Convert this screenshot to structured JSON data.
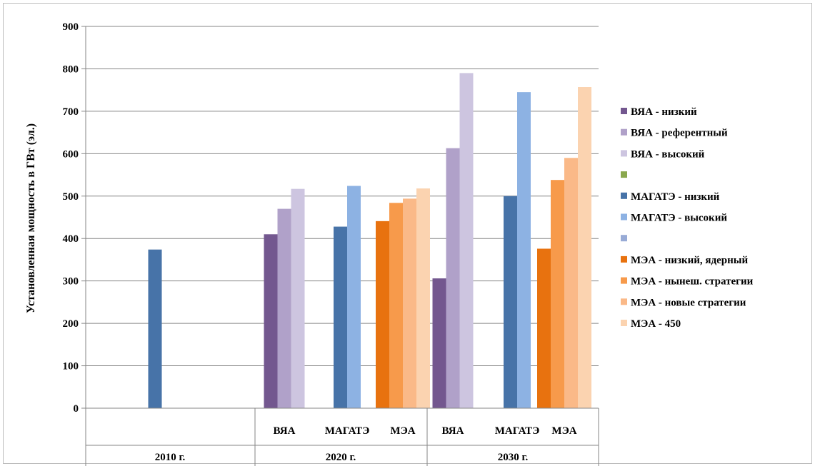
{
  "chart_data": {
    "type": "bar",
    "ylabel": "Установленная мощность в ГВт (эл.)",
    "ylim": [
      0,
      900
    ],
    "yticks": [
      "0",
      "100",
      "200",
      "300",
      "400",
      "500",
      "600",
      "700",
      "800",
      "900"
    ],
    "grid": true,
    "legend_position": "right",
    "years": [
      "2010 г.",
      "2020 г.",
      "2030 г."
    ],
    "groups": [
      {
        "year": "2010 г.",
        "label": "",
        "bars": [
          {
            "series": "МАГАТЭ - низкий",
            "value": 374
          }
        ]
      },
      {
        "year": "2020 г.",
        "label": "ВЯА",
        "bars": [
          {
            "series": "ВЯА - низкий",
            "value": 410
          },
          {
            "series": "ВЯА - референтный",
            "value": 470
          },
          {
            "series": "ВЯА - высокий",
            "value": 517
          }
        ]
      },
      {
        "year": "2020 г.",
        "label": "МАГАТЭ",
        "bars": [
          {
            "series": "МАГАТЭ - низкий",
            "value": 428
          },
          {
            "series": "МАГАТЭ - высокий",
            "value": 524
          }
        ]
      },
      {
        "year": "2020 г.",
        "label": "МЭА",
        "bars": [
          {
            "series": "МЭА - низкий, ядерный",
            "value": 441
          },
          {
            "series": "МЭА - нынеш. стратегии",
            "value": 484
          },
          {
            "series": "МЭА - новые стратегии",
            "value": 494
          },
          {
            "series": "МЭА - 450",
            "value": 518
          }
        ]
      },
      {
        "year": "2030 г.",
        "label": "ВЯА",
        "bars": [
          {
            "series": "ВЯА - низкий",
            "value": 306
          },
          {
            "series": "ВЯА - референтный",
            "value": 613
          },
          {
            "series": "ВЯА - высокий",
            "value": 790
          }
        ]
      },
      {
        "year": "2030 г.",
        "label": "МАГАТЭ",
        "bars": [
          {
            "series": "МАГАТЭ - низкий",
            "value": 500
          },
          {
            "series": "МАГАТЭ - высокий",
            "value": 745
          }
        ]
      },
      {
        "year": "2030 г.",
        "label": "МЭА",
        "bars": [
          {
            "series": "МЭА - низкий, ядерный",
            "value": 376
          },
          {
            "series": "МЭА - нынеш. стратегии",
            "value": 538
          },
          {
            "series": "МЭА - новые стратегии",
            "value": 590
          },
          {
            "series": "МЭА - 450",
            "value": 757
          }
        ]
      }
    ],
    "legend": [
      {
        "name": "ВЯА - низкий",
        "color": "#73578f"
      },
      {
        "name": "ВЯА - референтный",
        "color": "#b0a1c9"
      },
      {
        "name": "ВЯА - высокий",
        "color": "#cdc5e0"
      },
      {
        "name": "",
        "color": "#8aa84e"
      },
      {
        "name": "МАГАТЭ - низкий",
        "color": "#4773a8"
      },
      {
        "name": "МАГАТЭ - высокий",
        "color": "#8db2e3"
      },
      {
        "name": "",
        "color": "#98abd6"
      },
      {
        "name": "МЭА - низкий, ядерный",
        "color": "#e8720f"
      },
      {
        "name": "МЭА - нынеш. стратегии",
        "color": "#f79a4b"
      },
      {
        "name": "МЭА - новые стратегии",
        "color": "#fab988"
      },
      {
        "name": "МЭА - 450",
        "color": "#fbd3b0"
      }
    ]
  }
}
